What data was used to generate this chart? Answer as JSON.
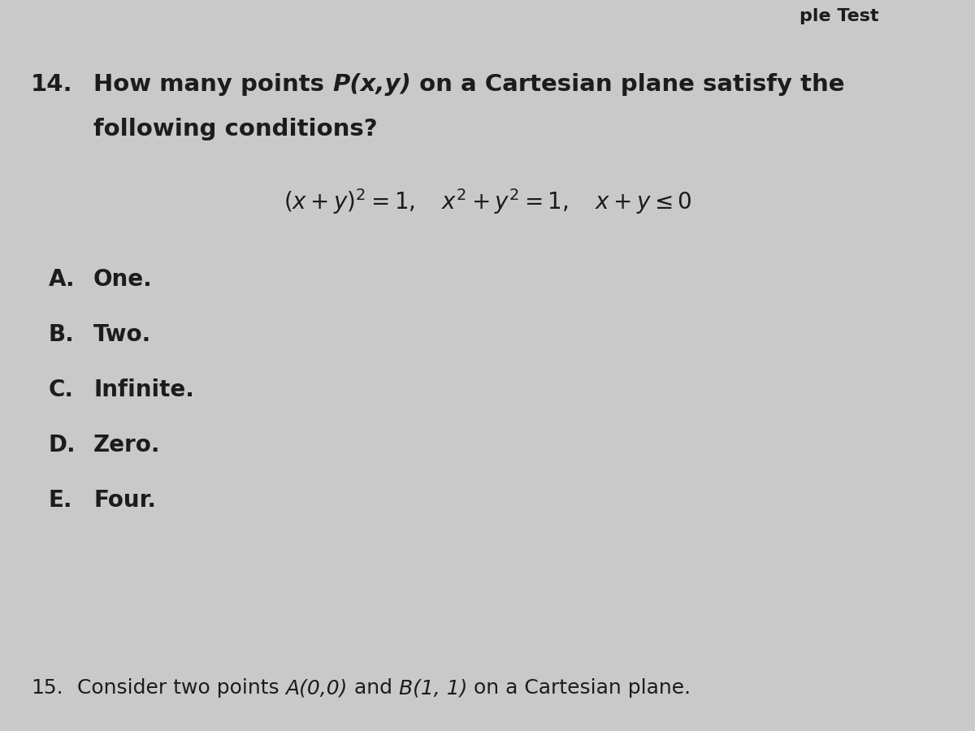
{
  "background_color": "#c9c9c9",
  "top_stripe_color": "#b5b5b5",
  "text_color": "#1c1c1c",
  "q14_num": "14.",
  "q14_line1_pre": "How many points ",
  "q14_line1_italic": "P(x,y)",
  "q14_line1_post": " on a Cartesian plane satisfy the",
  "q14_line2": "following conditions?",
  "eq1": "(x + y)² = 1,",
  "eq2": "x² + y² = 1,",
  "eq3": "x + y ≤ 0",
  "options": [
    {
      "label": "A.",
      "text": "One."
    },
    {
      "label": "B.",
      "text": "Two."
    },
    {
      "label": "C.",
      "text": "Infinite."
    },
    {
      "label": "D.",
      "text": "Zero."
    },
    {
      "label": "E.",
      "text": "Four."
    }
  ],
  "q15_num": "15.",
  "q15_pre": "Consider two points ",
  "q15_A": "A(0,0)",
  "q15_and": " and ",
  "q15_B": "B(1, 1)",
  "q15_post": " on a Cartesian plane.",
  "q14_fontsize": 21,
  "eq_fontsize": 20,
  "opt_fontsize": 20,
  "q15_fontsize": 18
}
